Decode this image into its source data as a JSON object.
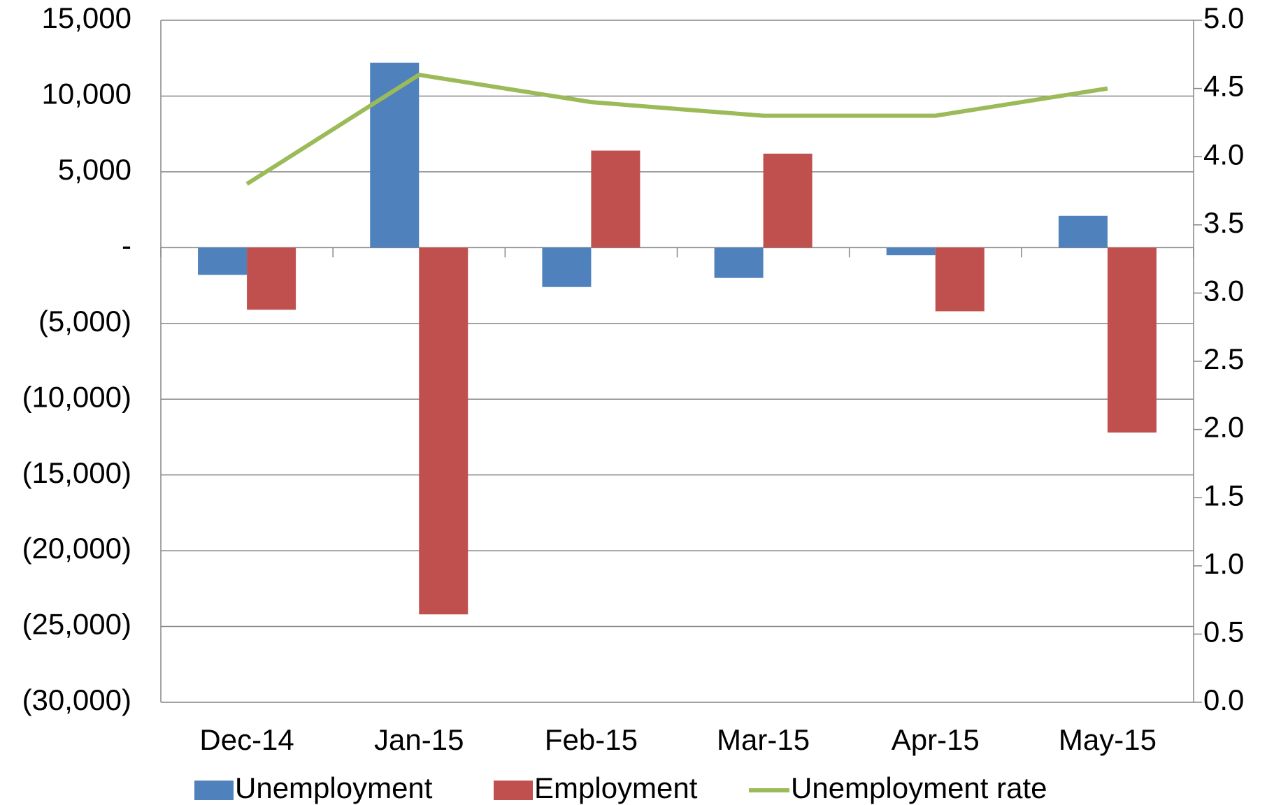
{
  "chart_data": {
    "type": "bar-line",
    "categories": [
      "Dec-14",
      "Jan-15",
      "Feb-15",
      "Mar-15",
      "Apr-15",
      "May-15"
    ],
    "series": [
      {
        "name": "Unemployment",
        "type": "bar",
        "color": "#4f81bd",
        "values": [
          -1800,
          12200,
          -2600,
          -2000,
          -500,
          2100
        ]
      },
      {
        "name": "Employment",
        "type": "bar",
        "color": "#c0504d",
        "values": [
          -4100,
          -24200,
          6400,
          6200,
          -4200,
          -12200
        ]
      },
      {
        "name": "Unemployment rate",
        "type": "line",
        "axis": "y2",
        "color": "#9bbb59",
        "values": [
          3.8,
          4.6,
          4.4,
          4.3,
          4.3,
          4.5
        ]
      }
    ],
    "ylim": [
      -30000,
      15000
    ],
    "yticks": [
      {
        "value": -30000,
        "label": "(30,000)"
      },
      {
        "value": -25000,
        "label": "(25,000)"
      },
      {
        "value": -20000,
        "label": "(20,000)"
      },
      {
        "value": -15000,
        "label": "(15,000)"
      },
      {
        "value": -10000,
        "label": "(10,000)"
      },
      {
        "value": -5000,
        "label": "(5,000)"
      },
      {
        "value": 0,
        "label": "-"
      },
      {
        "value": 5000,
        "label": "5,000"
      },
      {
        "value": 10000,
        "label": "10,000"
      },
      {
        "value": 15000,
        "label": "15,000"
      }
    ],
    "y2lim": [
      0,
      5
    ],
    "y2ticks": [
      {
        "value": 0,
        "label": "0.0"
      },
      0.5,
      {
        "value": 1,
        "label": "1.0"
      },
      1.5,
      {
        "value": 2,
        "label": "2.0"
      },
      2.5,
      {
        "value": 3,
        "label": "3.0"
      },
      3.5,
      {
        "value": 4,
        "label": "4.0"
      },
      4.5,
      {
        "value": 5,
        "label": "5.0"
      }
    ],
    "grid": true,
    "legend": "bottom"
  }
}
